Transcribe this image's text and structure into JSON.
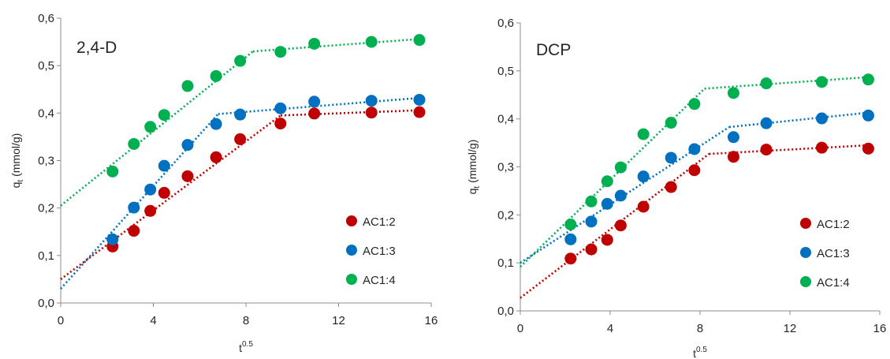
{
  "chart_data": [
    {
      "type": "scatter",
      "panel_label": "2,4-D",
      "xlabel": "t",
      "xlabel_sup": "0.5",
      "ylabel": "q",
      "ylabel_sub": "t",
      "ylabel_unit": " (mmol/g)",
      "xlim": [
        0,
        16
      ],
      "ylim": [
        0,
        0.6
      ],
      "x_ticks": [
        "0",
        "4",
        "8",
        "12",
        "16"
      ],
      "y_ticks": [
        "0,0",
        "0,1",
        "0,2",
        "0,3",
        "0,4",
        "0,5",
        "0,6"
      ],
      "grid": false,
      "legend_position": "bottom-right",
      "series": [
        {
          "name": "AC1:2",
          "color": "#c00000",
          "x": [
            2.24,
            3.16,
            3.87,
            4.47,
            5.48,
            6.71,
            7.75,
            9.49,
            10.95,
            13.42,
            15.49
          ],
          "y": [
            0.119,
            0.152,
            0.194,
            0.232,
            0.267,
            0.307,
            0.345,
            0.378,
            0.399,
            0.401,
            0.402
          ],
          "fit_lines": [
            {
              "x": [
                0,
                9.5
              ],
              "y": [
                0.05,
                0.395
              ]
            },
            {
              "x": [
                9.5,
                15.5
              ],
              "y": [
                0.395,
                0.406
              ]
            }
          ]
        },
        {
          "name": "AC1:3",
          "color": "#0070c0",
          "x": [
            2.24,
            3.16,
            3.87,
            4.47,
            5.48,
            6.71,
            7.75,
            9.49,
            10.95,
            13.42,
            15.49
          ],
          "y": [
            0.134,
            0.201,
            0.239,
            0.289,
            0.333,
            0.377,
            0.397,
            0.41,
            0.424,
            0.426,
            0.428
          ],
          "fit_lines": [
            {
              "x": [
                0,
                6.8
              ],
              "y": [
                0.03,
                0.398
              ]
            },
            {
              "x": [
                6.8,
                15.5
              ],
              "y": [
                0.398,
                0.432
              ]
            }
          ]
        },
        {
          "name": "AC1:4",
          "color": "#00b050",
          "x": [
            2.24,
            3.16,
            3.87,
            4.47,
            5.48,
            6.71,
            7.75,
            9.49,
            10.95,
            13.42,
            15.49
          ],
          "y": [
            0.277,
            0.335,
            0.371,
            0.396,
            0.457,
            0.478,
            0.51,
            0.529,
            0.546,
            0.55,
            0.554
          ],
          "fit_lines": [
            {
              "x": [
                0,
                8.3
              ],
              "y": [
                0.205,
                0.53
              ]
            },
            {
              "x": [
                8.3,
                15.5
              ],
              "y": [
                0.53,
                0.556
              ]
            }
          ]
        }
      ]
    },
    {
      "type": "scatter",
      "panel_label": "DCP",
      "xlabel": "t",
      "xlabel_sup": "0.5",
      "ylabel": "q",
      "ylabel_sub": "t",
      "ylabel_unit": " (mmol/g)",
      "xlim": [
        0,
        16
      ],
      "ylim": [
        0,
        0.6
      ],
      "x_ticks": [
        "0",
        "4",
        "8",
        "12",
        "16"
      ],
      "y_ticks": [
        "0,0",
        "0,1",
        "0,2",
        "0,3",
        "0,4",
        "0,5",
        "0,6"
      ],
      "grid": false,
      "legend_position": "bottom-right",
      "series": [
        {
          "name": "AC1:2",
          "color": "#c00000",
          "x": [
            2.24,
            3.16,
            3.87,
            4.47,
            5.48,
            6.71,
            7.75,
            9.49,
            10.95,
            13.42,
            15.49
          ],
          "y": [
            0.109,
            0.128,
            0.148,
            0.178,
            0.217,
            0.258,
            0.293,
            0.321,
            0.336,
            0.34,
            0.338
          ],
          "fit_lines": [
            {
              "x": [
                0,
                8.4
              ],
              "y": [
                0.027,
                0.327
              ]
            },
            {
              "x": [
                8.4,
                15.5
              ],
              "y": [
                0.327,
                0.345
              ]
            }
          ]
        },
        {
          "name": "AC1:3",
          "color": "#0070c0",
          "x": [
            2.24,
            3.16,
            3.87,
            4.47,
            5.48,
            6.71,
            7.75,
            9.49,
            10.95,
            13.42,
            15.49
          ],
          "y": [
            0.149,
            0.186,
            0.223,
            0.24,
            0.28,
            0.319,
            0.337,
            0.362,
            0.391,
            0.401,
            0.407
          ],
          "fit_lines": [
            {
              "x": [
                0,
                9.3
              ],
              "y": [
                0.1,
                0.383
              ]
            },
            {
              "x": [
                9.3,
                15.5
              ],
              "y": [
                0.383,
                0.413
              ]
            }
          ]
        },
        {
          "name": "AC1:4",
          "color": "#00b050",
          "x": [
            2.24,
            3.16,
            3.87,
            4.47,
            5.48,
            6.71,
            7.75,
            9.49,
            10.95,
            13.42,
            15.49
          ],
          "y": [
            0.18,
            0.228,
            0.27,
            0.299,
            0.368,
            0.392,
            0.431,
            0.454,
            0.474,
            0.477,
            0.482
          ],
          "fit_lines": [
            {
              "x": [
                0,
                8.2
              ],
              "y": [
                0.092,
                0.463
              ]
            },
            {
              "x": [
                8.2,
                15.5
              ],
              "y": [
                0.463,
                0.487
              ]
            }
          ]
        }
      ]
    }
  ]
}
